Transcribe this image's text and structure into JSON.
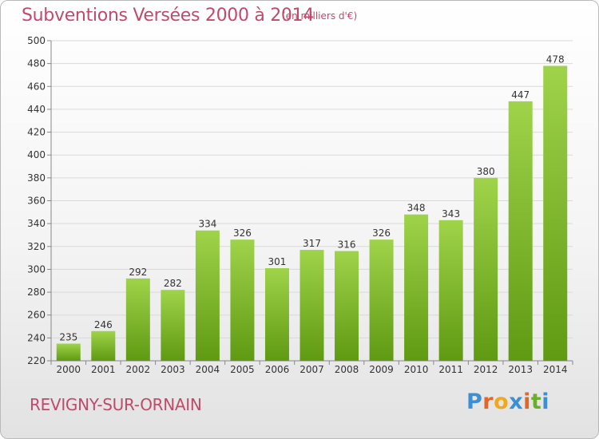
{
  "header": {
    "title": "Subventions Versées 2000 à 2014",
    "subtitle": "(en milliers d'€)"
  },
  "footer": {
    "place": "REVIGNY-SUR-ORNAIN",
    "logo_letters": [
      "P",
      "r",
      "o",
      "x",
      "i",
      "t",
      "i"
    ]
  },
  "colors": {
    "bar_top": "#9fd34a",
    "bar_bottom": "#5f9a12",
    "text_accent": "#c04a6a",
    "logo": [
      "#3b8fd4",
      "#e0662a",
      "#f2a81c",
      "#3b8fd4",
      "#e0662a",
      "#6aae2a",
      "#3b8fd4"
    ]
  },
  "chart_data": {
    "type": "bar",
    "title": "Subventions Versées 2000 à 2014",
    "subtitle": "(en milliers d'€)",
    "categories": [
      "2000",
      "2001",
      "2002",
      "2003",
      "2004",
      "2005",
      "2006",
      "2007",
      "2008",
      "2009",
      "2010",
      "2011",
      "2012",
      "2013",
      "2014"
    ],
    "values": [
      235,
      246,
      292,
      282,
      334,
      326,
      301,
      317,
      316,
      326,
      348,
      343,
      380,
      447,
      478
    ],
    "ylim": [
      220,
      500
    ],
    "yticks": [
      220,
      240,
      260,
      280,
      300,
      320,
      340,
      360,
      380,
      400,
      420,
      440,
      460,
      480,
      500
    ],
    "grid": true,
    "data_labels": true
  }
}
